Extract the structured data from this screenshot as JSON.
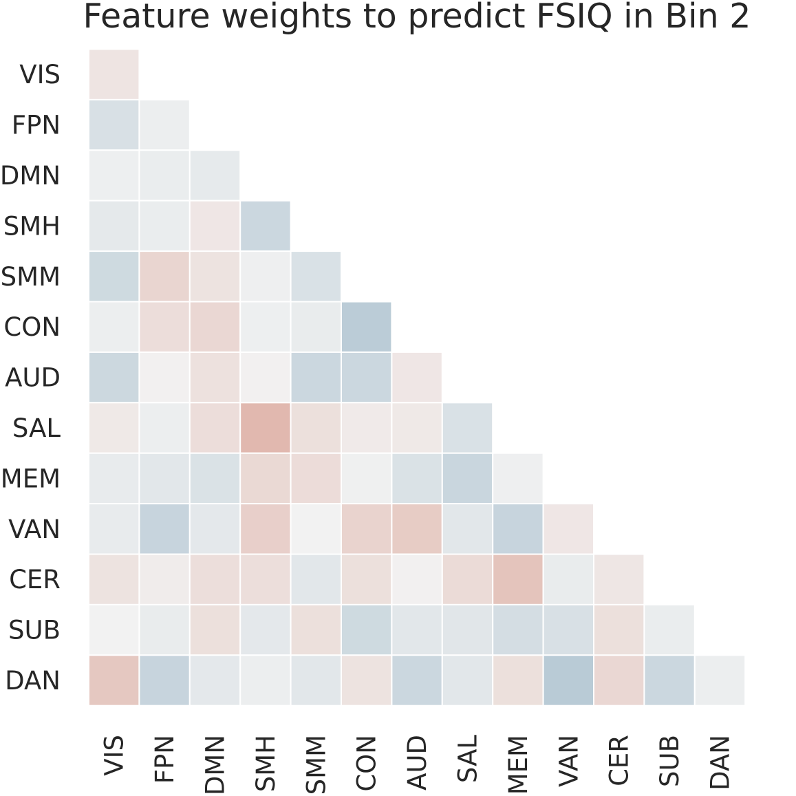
{
  "chart_data": {
    "type": "heatmap",
    "title": "Feature weights to predict FSIQ in Bin 2",
    "xlabel": "",
    "ylabel": "",
    "labels": [
      "VIS",
      "FPN",
      "DMN",
      "SMH",
      "SMM",
      "CON",
      "AUD",
      "SAL",
      "MEM",
      "VAN",
      "CER",
      "SUB",
      "DAN"
    ],
    "mask": "lower-triangle-with-diagonal",
    "value_range": [
      -1,
      1
    ],
    "colormap": {
      "negative": "#a3bccb",
      "zero": "#f2f2f2",
      "positive": "#dba598"
    },
    "values": [
      [
        0.18
      ],
      [
        -0.33,
        -0.08
      ],
      [
        -0.06,
        -0.1,
        -0.15
      ],
      [
        -0.17,
        -0.1,
        0.15,
        -0.5
      ],
      [
        -0.45,
        0.38,
        0.2,
        -0.05,
        -0.32
      ],
      [
        -0.08,
        0.27,
        0.35,
        -0.06,
        -0.12,
        -0.7
      ],
      [
        -0.48,
        0.02,
        0.22,
        0.02,
        -0.5,
        -0.5,
        0.15
      ],
      [
        0.12,
        -0.08,
        0.27,
        0.75,
        0.24,
        0.1,
        0.12,
        -0.32
      ],
      [
        -0.13,
        -0.2,
        -0.3,
        0.33,
        0.28,
        -0.04,
        -0.3,
        -0.52,
        -0.05
      ],
      [
        -0.13,
        -0.55,
        -0.18,
        0.45,
        0.0,
        0.4,
        0.5,
        -0.2,
        -0.55,
        0.15
      ],
      [
        0.2,
        0.08,
        0.26,
        0.26,
        -0.2,
        0.24,
        0.02,
        0.3,
        0.6,
        -0.12,
        0.16
      ],
      [
        0.0,
        -0.12,
        0.24,
        -0.18,
        0.24,
        -0.45,
        -0.2,
        -0.22,
        -0.38,
        -0.33,
        0.24,
        -0.1
      ],
      [
        0.55,
        -0.55,
        -0.18,
        -0.08,
        -0.2,
        0.2,
        -0.5,
        -0.2,
        0.24,
        -0.72,
        0.35,
        -0.5,
        -0.07
      ]
    ]
  }
}
